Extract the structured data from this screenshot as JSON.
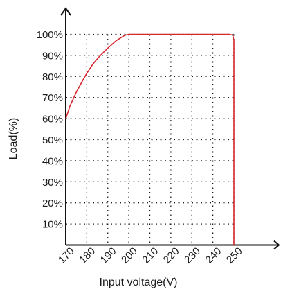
{
  "chart_data": {
    "type": "line",
    "title": "",
    "xlabel": "Input voltage(V)",
    "ylabel": "Load(%)",
    "xlim": [
      170,
      250
    ],
    "ylim": [
      0,
      100
    ],
    "x_ticks": [
      170,
      180,
      190,
      200,
      210,
      220,
      230,
      240,
      250
    ],
    "x_tick_labels": [
      "170",
      "180",
      "190",
      "200",
      "210",
      "220",
      "230",
      "240",
      "250"
    ],
    "y_ticks": [
      10,
      20,
      30,
      40,
      50,
      60,
      70,
      80,
      90,
      100
    ],
    "y_tick_labels": [
      "10%",
      "20%",
      "30%",
      "40%",
      "50%",
      "60%",
      "70%",
      "80%",
      "90%",
      "100%"
    ],
    "grid": "dotted",
    "legend": "none",
    "series": [
      {
        "color": "#d7262e",
        "x": [
          170,
          172,
          175,
          178,
          180,
          183,
          186,
          190,
          194,
          198,
          200,
          210,
          220,
          230,
          240,
          248,
          249.5,
          250,
          250
        ],
        "y": [
          60,
          66,
          72.5,
          78,
          81.5,
          86,
          89.5,
          93.5,
          97,
          99.5,
          100,
          100,
          100,
          100,
          100,
          100,
          99.5,
          97,
          0
        ]
      }
    ]
  }
}
